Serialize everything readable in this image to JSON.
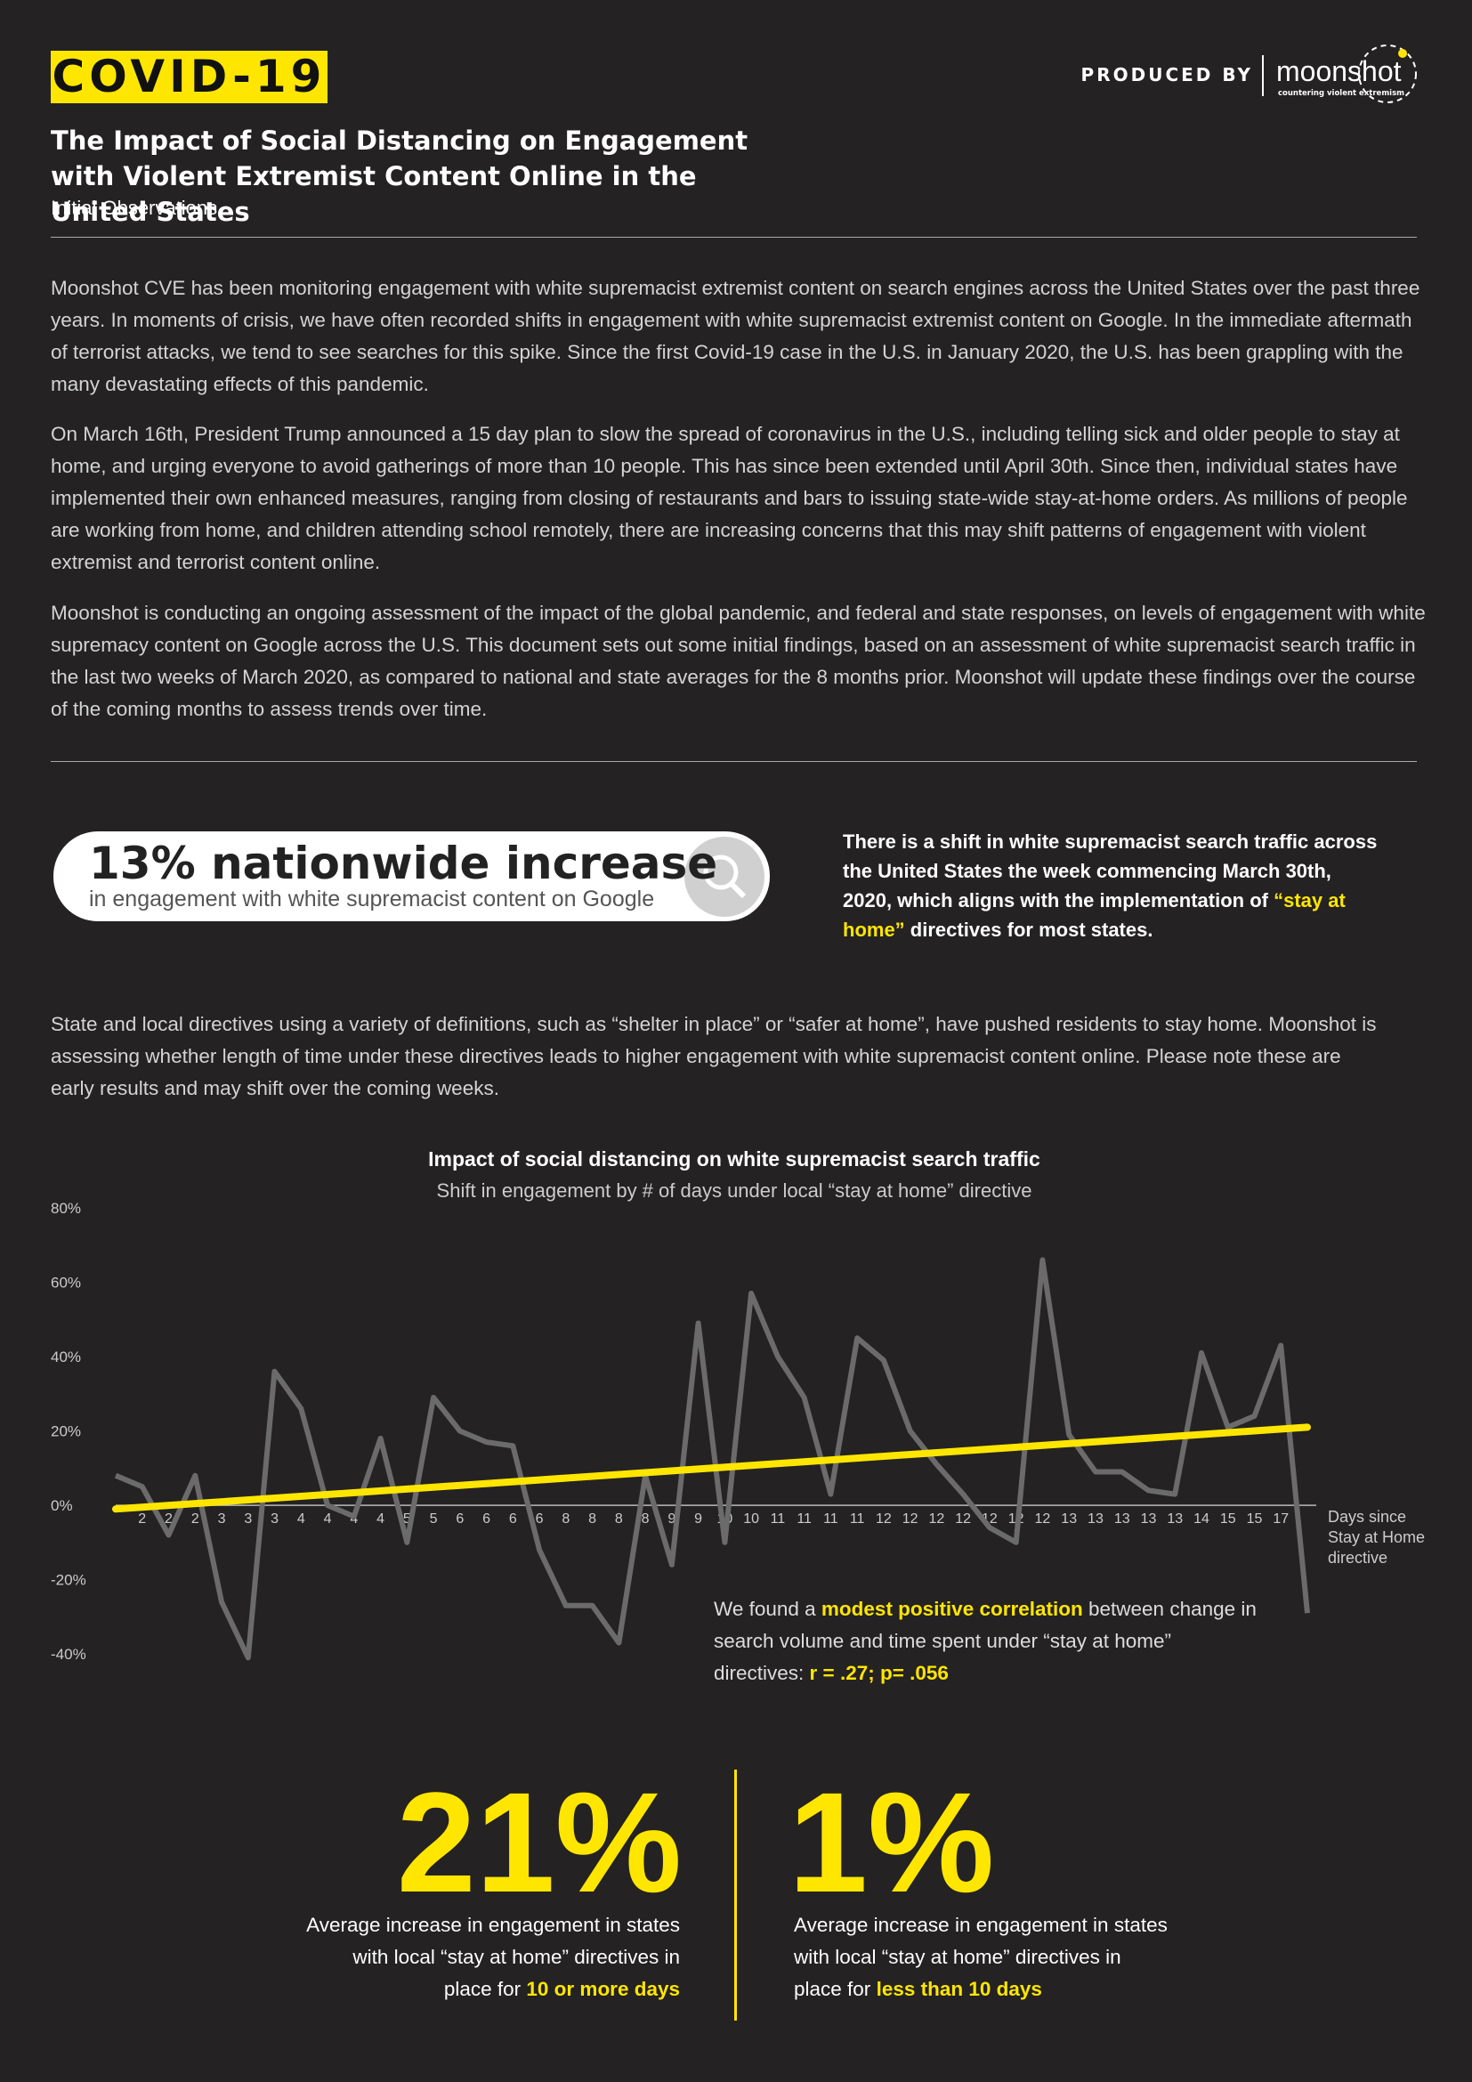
{
  "header": {
    "badge": "COVID-19",
    "produced_by": "PRODUCED BY",
    "logo": "moonshot",
    "logo_tagline": "countering violent extremism",
    "title": "The Impact of Social Distancing on Engagement with Violent Extremist Content Online in the United States",
    "subtitle": "Initial Observations"
  },
  "intro": {
    "paragraphs": [
      "Moonshot CVE has been monitoring engagement with white supremacist extremist content on search engines across the United States over the past three years. In moments of crisis, we have often recorded shifts in engagement with white supremacist extremist content on Google. In the immediate aftermath of terrorist attacks, we tend to see searches for this spike. Since the first Covid-19 case in the U.S. in January 2020, the U.S. has been grappling with the many devastating effects of this pandemic.",
      "On March 16th, President Trump announced a 15 day plan to slow the spread of coronavirus in the U.S., including telling sick and older people to stay at home, and urging everyone to avoid gatherings of more than 10 people. This has since been extended until April 30th. Since then, individual states have implemented their own enhanced measures, ranging from closing of restaurants and bars to issuing state-wide stay-at-home orders. As millions of people are working from home, and children attending school remotely, there are increasing concerns that this may shift patterns of engagement with violent extremist and terrorist content online.",
      "Moonshot is conducting an ongoing assessment of the impact of the global pandemic, and federal and state responses, on levels of engagement with white supremacy content on Google across the U.S. This document sets out some initial findings, based on an assessment of white supremacist search traffic in the last two weeks of March 2020, as compared to national and state averages for the 8 months prior. Moonshot will update these findings over the course of the coming months to assess trends over time."
    ]
  },
  "callout": {
    "stat": "13% nationwide increase",
    "stat_caption": "in engagement with white supremacist content on Google",
    "text": [
      "There is a shift in white supremacist search traffic across the United States the week commencing March 30th, 2020, which aligns with the implementation of ",
      "“stay at home”",
      " directives for most states."
    ]
  },
  "directives_paragraph": "State and local directives using a variety of definitions, such as “shelter in place” or “safer at home”, have pushed residents to stay home. Moonshot is assessing whether length of time under these directives leads to higher engagement with white supremacist content online. Please note these are early results and may shift over the coming weeks.",
  "chart_data": {
    "type": "line",
    "title": "Impact of social distancing on white supremacist search traffic",
    "subtitle": "Shift in engagement by # of days under local “stay at home” directive",
    "x_label": "Days since Stay at Home directive",
    "categories": [
      null,
      "2",
      "2",
      "2",
      "3",
      "3",
      "3",
      "4",
      "4",
      "4",
      "4",
      "5",
      "5",
      "6",
      "6",
      "6",
      "6",
      "8",
      "8",
      "8",
      "8",
      "9",
      "9",
      "10",
      "10",
      "11",
      "11",
      "11",
      "11",
      "12",
      "12",
      "12",
      "12",
      "12",
      "12",
      "12",
      "13",
      "13",
      "13",
      "13",
      "13",
      "14",
      "15",
      "15",
      "17",
      null
    ],
    "values": [
      8,
      5,
      -8,
      8,
      -26,
      -41,
      36,
      26,
      0,
      -3,
      18,
      -10,
      29,
      20,
      17,
      16,
      -12,
      -27,
      -27,
      -37,
      8,
      -16,
      49,
      -10,
      57,
      40,
      29,
      3,
      45,
      39,
      20,
      11,
      3,
      -6,
      -10,
      66,
      19,
      9,
      9,
      4,
      3,
      41,
      21,
      24,
      43,
      -29
    ],
    "color": "#6b6b6b",
    "trend": {
      "color": "#ffe600",
      "values": [
        -1,
        21
      ]
    },
    "ylim": [
      -45,
      80
    ],
    "yticks": [
      {
        "value": -40,
        "label": "-40%"
      },
      {
        "value": -20,
        "label": "-20%"
      },
      {
        "value": 0,
        "label": "0%"
      },
      {
        "value": 20,
        "label": "20%"
      },
      {
        "value": 40,
        "label": "40%"
      },
      {
        "value": 60,
        "label": "60%"
      },
      {
        "value": 80,
        "label": "80%"
      }
    ],
    "grid": false,
    "annotation": [
      "We found a ",
      "modest positive correlation",
      " between change in search volume and time spent under “stay at home” directives: ",
      "r = .27; p= .056"
    ]
  },
  "stats": [
    {
      "value": "21%",
      "text": [
        "Average increase in engagement in states with local “stay at home” directives in place for ",
        "10 or more days"
      ]
    },
    {
      "value": "1%",
      "text": [
        "Average increase in engagement in states with local “stay at home” directives in place for ",
        "less than 10 days"
      ]
    }
  ]
}
